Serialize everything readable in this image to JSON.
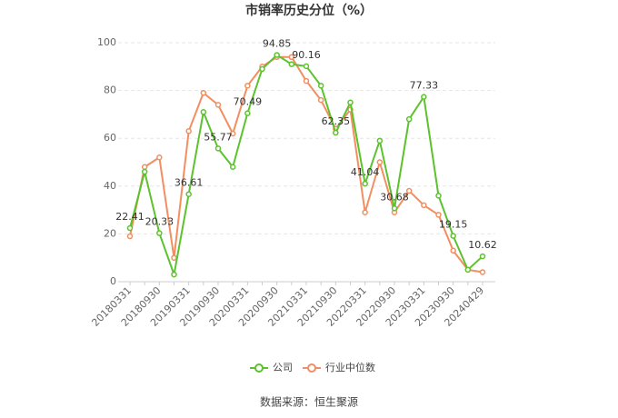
{
  "chart_data": {
    "type": "line",
    "title": "市销率历史分位（%）",
    "categories": [
      "20180331",
      null,
      "20180930",
      null,
      "20190331",
      null,
      "20190930",
      null,
      "20200331",
      null,
      "20200930",
      null,
      "20210331",
      null,
      "20210930",
      null,
      "20220331",
      null,
      "20220930",
      null,
      "20230331",
      null,
      "20230930",
      null,
      "20240429"
    ],
    "series": [
      {
        "name": "公司",
        "color": "#5cc22e",
        "values": [
          22.41,
          46,
          20.33,
          3,
          36.61,
          71,
          55.77,
          48,
          70.49,
          89,
          94.85,
          91,
          90.16,
          82,
          62.35,
          75,
          41.04,
          59,
          30.68,
          68,
          77.33,
          36,
          19.15,
          5,
          10.62
        ]
      },
      {
        "name": "行业中位数",
        "color": "#f28e60",
        "values": [
          19,
          48,
          52,
          10,
          63,
          79,
          74,
          62,
          82,
          90,
          94,
          94,
          84,
          76,
          64,
          72,
          29,
          50,
          29,
          38,
          32,
          28,
          13,
          5,
          4
        ]
      }
    ],
    "ylim": [
      0,
      100
    ],
    "yticks": [
      0,
      20,
      40,
      60,
      80,
      100
    ],
    "grid": true,
    "legend": "bottom",
    "source": "数据来源：恒生聚源"
  }
}
